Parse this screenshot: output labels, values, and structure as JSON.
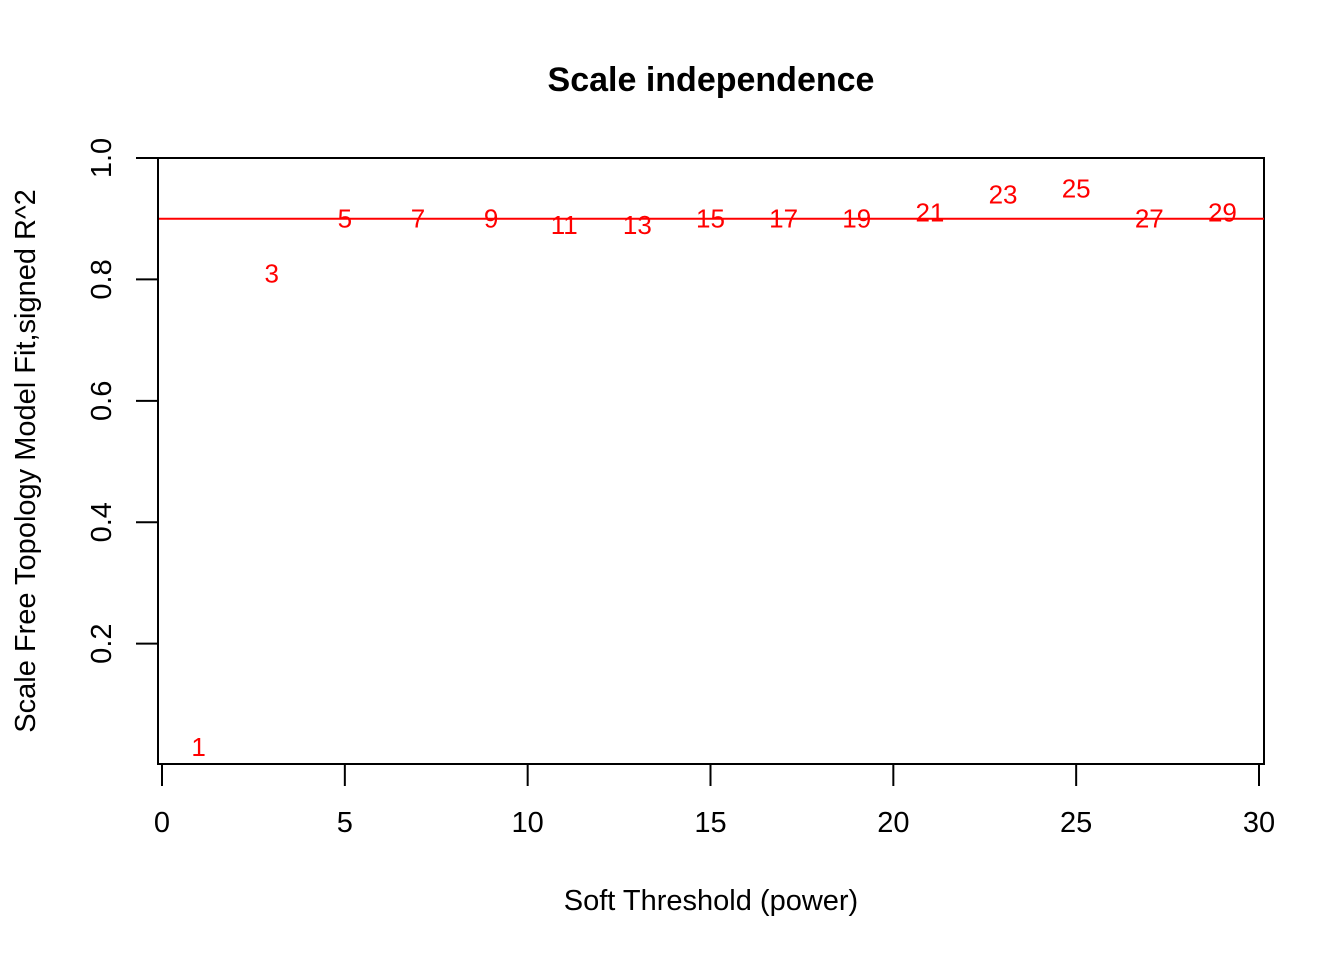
{
  "chart_data": {
    "type": "scatter",
    "title": "Scale independence",
    "xlabel": "Soft Threshold (power)",
    "ylabel": "Scale Free Topology Model Fit,signed R^2",
    "xlim": [
      0,
      30
    ],
    "ylim": [
      0.01,
      1.0
    ],
    "x_ticks": [
      0,
      5,
      10,
      15,
      20,
      25,
      30
    ],
    "y_ticks": [
      0.2,
      0.4,
      0.6,
      0.8,
      1.0
    ],
    "y_tick_labels": [
      "0.2",
      "0.4",
      "0.6",
      "0.8",
      "1.0"
    ],
    "grid": false,
    "marker": "text-label",
    "point_color": "#ff0000",
    "reference_line": {
      "y": 0.9,
      "color": "#ff0000"
    },
    "points": [
      {
        "x": 1,
        "y": 0.03,
        "label": "1"
      },
      {
        "x": 3,
        "y": 0.81,
        "label": "3"
      },
      {
        "x": 5,
        "y": 0.9,
        "label": "5"
      },
      {
        "x": 7,
        "y": 0.9,
        "label": "7"
      },
      {
        "x": 9,
        "y": 0.9,
        "label": "9"
      },
      {
        "x": 11,
        "y": 0.89,
        "label": "11"
      },
      {
        "x": 13,
        "y": 0.89,
        "label": "13"
      },
      {
        "x": 15,
        "y": 0.9,
        "label": "15"
      },
      {
        "x": 17,
        "y": 0.9,
        "label": "17"
      },
      {
        "x": 19,
        "y": 0.9,
        "label": "19"
      },
      {
        "x": 21,
        "y": 0.91,
        "label": "21"
      },
      {
        "x": 23,
        "y": 0.94,
        "label": "23"
      },
      {
        "x": 25,
        "y": 0.95,
        "label": "25"
      },
      {
        "x": 27,
        "y": 0.9,
        "label": "27"
      },
      {
        "x": 29,
        "y": 0.91,
        "label": "29"
      }
    ]
  }
}
